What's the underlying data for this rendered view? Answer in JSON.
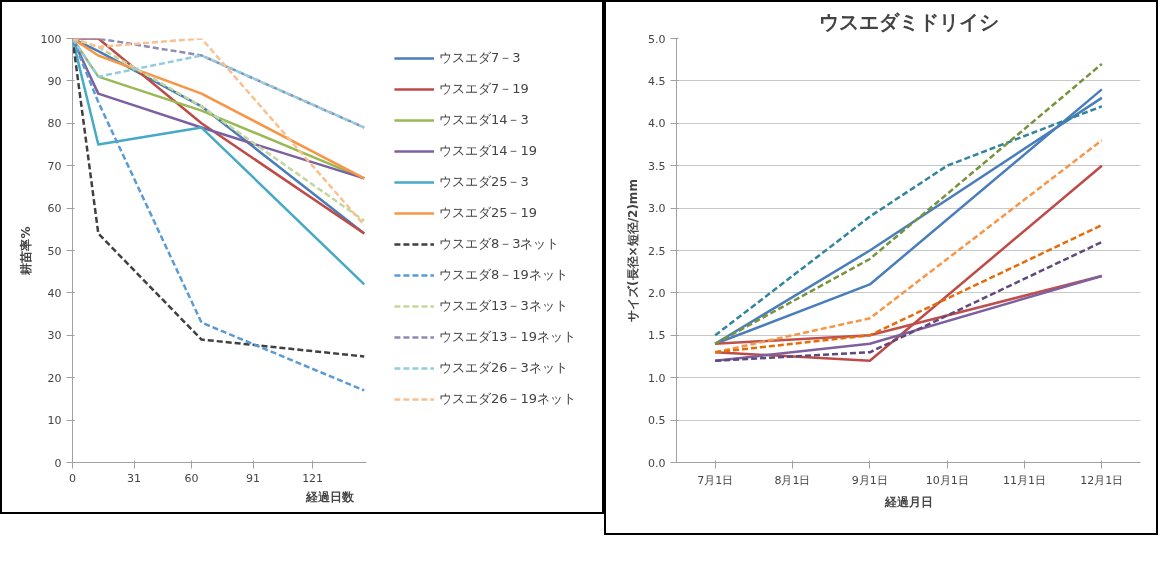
{
  "chart_data": [
    {
      "type": "line",
      "xlabel": "経過日数",
      "ylabel": "耕苗率%",
      "xlim": [
        0,
        148
      ],
      "ylim": [
        0,
        100
      ],
      "xticks": [
        0,
        31,
        60,
        91,
        121
      ],
      "yticks": [
        0,
        10,
        20,
        30,
        40,
        50,
        60,
        70,
        80,
        90,
        100
      ],
      "x": [
        0,
        13,
        65,
        147
      ],
      "grid": false,
      "legend": "right",
      "series": [
        {
          "name": "ウスエダ7－3",
          "color": "#4a7ebb",
          "values": [
            100,
            97,
            84,
            54
          ]
        },
        {
          "name": "ウスエダ7－19",
          "color": "#be4b48",
          "values": [
            100,
            100,
            80,
            54
          ]
        },
        {
          "name": "ウスエダ14－3",
          "color": "#98b954",
          "values": [
            100,
            91,
            83,
            67
          ]
        },
        {
          "name": "ウスエダ14－19",
          "color": "#7d60a0",
          "values": [
            100,
            87,
            79,
            67
          ]
        },
        {
          "name": "ウスエダ25－3",
          "color": "#46aac5",
          "values": [
            100,
            75,
            79,
            42
          ]
        },
        {
          "name": "ウスエダ25－19",
          "color": "#f79646",
          "values": [
            100,
            96,
            87,
            67
          ]
        },
        {
          "name": "ウスエダ8－3ネット",
          "color": "#404040",
          "line_style": "dashed",
          "values": [
            100,
            54,
            29,
            25
          ]
        },
        {
          "name": "ウスエダ8－19ネット",
          "color": "#5b9bd5",
          "line_style": "dashed",
          "values": [
            100,
            85,
            33,
            17
          ]
        },
        {
          "name": "ウスエダ13－3ネット",
          "color": "#c3d69b",
          "line_style": "dashed",
          "values": [
            100,
            98,
            84,
            57
          ]
        },
        {
          "name": "ウスエダ13－19ネット",
          "color": "#8c8cb4",
          "line_style": "dashed",
          "values": [
            100,
            100,
            96,
            79
          ]
        },
        {
          "name": "ウスエダ26－3ネット",
          "color": "#93cddd",
          "line_style": "dashed",
          "values": [
            100,
            91,
            96,
            79
          ]
        },
        {
          "name": "ウスエダ26－19ネット",
          "color": "#fac090",
          "line_style": "dashed",
          "values": [
            100,
            98,
            100,
            56
          ]
        }
      ]
    },
    {
      "type": "line",
      "title": "ウスエダミドリイシ",
      "xlabel": "経過月日",
      "ylabel": "サイズ(長径×短径/2)mm",
      "categories": [
        "7月1日",
        "8月1日",
        "9月1日",
        "10月1日",
        "11月1日",
        "12月1日"
      ],
      "ylim": [
        0,
        5
      ],
      "yticks": [
        {
          "value": 0,
          "label": "0.0"
        },
        {
          "value": 0.5,
          "label": "0.5"
        },
        {
          "value": 1,
          "label": "1.0"
        },
        {
          "value": 1.5,
          "label": "1.5"
        },
        {
          "value": 2,
          "label": "2.0"
        },
        {
          "value": 2.5,
          "label": "2.5"
        },
        {
          "value": 3,
          "label": "3.0"
        },
        {
          "value": 3.5,
          "label": "3.5"
        },
        {
          "value": 4,
          "label": "4.0"
        },
        {
          "value": 4.5,
          "label": "4.5"
        },
        {
          "value": 5,
          "label": "5.0"
        }
      ],
      "grid": "y",
      "legend": false,
      "series": [
        {
          "color": "#4a7ebb",
          "values": [
            1.4,
            null,
            2.5,
            null,
            null,
            4.3
          ]
        },
        {
          "color": "#4a7ebb",
          "values": [
            1.4,
            null,
            2.1,
            null,
            null,
            4.4
          ]
        },
        {
          "color": "#be4b48",
          "values": [
            1.3,
            null,
            1.2,
            null,
            null,
            3.5
          ]
        },
        {
          "color": "#c0504d",
          "values": [
            1.4,
            null,
            1.5,
            null,
            null,
            2.2
          ]
        },
        {
          "color": "#7d60a0",
          "values": [
            1.2,
            null,
            1.4,
            null,
            null,
            2.2
          ]
        },
        {
          "color": "#31859c",
          "line_style": "dashed",
          "values": [
            1.5,
            null,
            2.9,
            3.5,
            null,
            4.2
          ]
        },
        {
          "color": "#77933c",
          "line_style": "dashed",
          "values": [
            1.4,
            null,
            2.4,
            null,
            null,
            4.7
          ]
        },
        {
          "color": "#f79646",
          "line_style": "dashed",
          "values": [
            1.3,
            null,
            1.7,
            null,
            null,
            3.8
          ]
        },
        {
          "color": "#e46c0a",
          "line_style": "dashed",
          "values": [
            1.3,
            null,
            1.5,
            null,
            null,
            2.8
          ]
        },
        {
          "color": "#604a7b",
          "line_style": "dashed",
          "values": [
            1.2,
            null,
            1.3,
            null,
            null,
            2.6
          ]
        }
      ]
    }
  ]
}
